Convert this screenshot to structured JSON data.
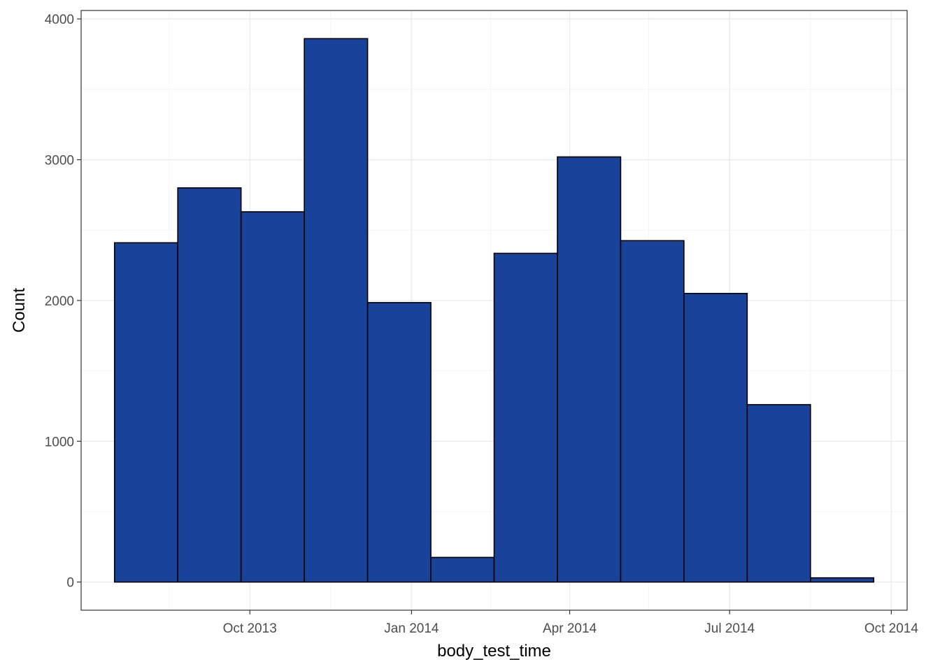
{
  "chart_data": {
    "type": "bar",
    "subtype": "histogram",
    "title": "",
    "xlabel": "body_test_time",
    "ylabel": "Count",
    "bins": [
      {
        "start": "2013-07-16",
        "end": "2013-08-21",
        "count": 2410
      },
      {
        "start": "2013-08-21",
        "end": "2013-09-26",
        "count": 2800
      },
      {
        "start": "2013-09-26",
        "end": "2013-11-01",
        "count": 2630
      },
      {
        "start": "2013-11-01",
        "end": "2013-12-07",
        "count": 3860
      },
      {
        "start": "2013-12-07",
        "end": "2014-01-12",
        "count": 1985
      },
      {
        "start": "2014-01-12",
        "end": "2014-02-17",
        "count": 175
      },
      {
        "start": "2014-02-17",
        "end": "2014-03-25",
        "count": 2335
      },
      {
        "start": "2014-03-25",
        "end": "2014-04-30",
        "count": 3020
      },
      {
        "start": "2014-04-30",
        "end": "2014-06-05",
        "count": 2425
      },
      {
        "start": "2014-06-05",
        "end": "2014-07-11",
        "count": 2050
      },
      {
        "start": "2014-07-11",
        "end": "2014-08-16",
        "count": 1260
      },
      {
        "start": "2014-08-16",
        "end": "2014-09-21",
        "count": 30
      }
    ],
    "xlim": [
      "2013-06-27",
      "2014-10-10"
    ],
    "ylim": [
      -200,
      4060
    ],
    "x_ticks": [
      {
        "date": "2013-10-01",
        "label": "Oct 2013"
      },
      {
        "date": "2014-01-01",
        "label": "Jan 2014"
      },
      {
        "date": "2014-04-01",
        "label": "Apr 2014"
      },
      {
        "date": "2014-07-01",
        "label": "Jul 2014"
      },
      {
        "date": "2014-10-01",
        "label": "Oct 2014"
      }
    ],
    "x_minor_ticks": [
      "2013-08-16",
      "2013-11-16",
      "2014-02-15",
      "2014-05-16",
      "2014-08-16"
    ],
    "y_ticks": [
      0,
      1000,
      2000,
      3000,
      4000
    ],
    "y_minor_ticks": [
      500,
      1500,
      2500,
      3500
    ],
    "grid": true,
    "legend": "none",
    "colors": {
      "bar_fill": "#19439a",
      "bar_outline": "#000000",
      "grid_major": "#ebebeb",
      "grid_minor": "#f4f4f4",
      "panel_border": "#333333",
      "tick_text": "#4d4d4d"
    }
  }
}
